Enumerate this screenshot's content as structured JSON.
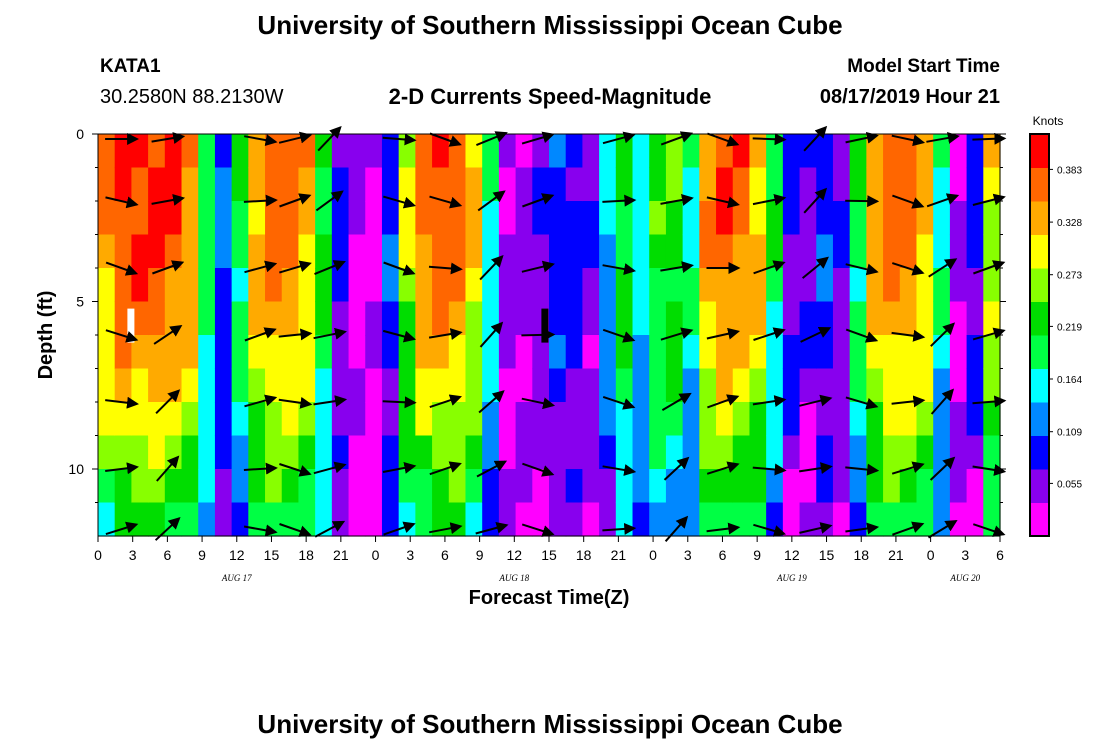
{
  "header": {
    "title": "University of Southern Mississippi Ocean Cube",
    "station": "KATA1",
    "coords": "30.2580N 88.2130W",
    "subtitle": "2-D Currents Speed-Magnitude",
    "model_start_label": "Model Start Time",
    "model_start_value": "08/17/2019 Hour 21"
  },
  "footer": {
    "title": "University of Southern Mississippi Ocean Cube"
  },
  "chart_data": {
    "type": "heatmap",
    "title": "2-D Currents Speed-Magnitude",
    "xlabel": "Forecast Time(Z)",
    "ylabel": "Depth (ft)",
    "x_range_hours": [
      0,
      78
    ],
    "y_range_ft": [
      0,
      12
    ],
    "x_tick_labels": [
      "0",
      "3",
      "6",
      "9",
      "12",
      "15",
      "18",
      "21",
      "0",
      "3",
      "6",
      "9",
      "12",
      "15",
      "18",
      "21",
      "0",
      "3",
      "6",
      "9",
      "12",
      "15",
      "18",
      "21",
      "0",
      "3",
      "6"
    ],
    "y_ticks": [
      0,
      5,
      10
    ],
    "y_tick_labels": [
      "0",
      "5",
      "10"
    ],
    "date_labels": [
      {
        "text": "AUG 17",
        "hour": 12
      },
      {
        "text": "AUG 18",
        "hour": 36
      },
      {
        "text": "AUG 19",
        "hour": 60
      },
      {
        "text": "AUG 20",
        "hour": 75
      }
    ],
    "colorbar": {
      "unit": "Knots",
      "min": 0.0,
      "max": 0.42,
      "ticks": [
        0.055,
        0.109,
        0.164,
        0.219,
        0.273,
        0.328,
        0.383
      ],
      "tick_labels": [
        "0.055",
        "0.109",
        "0.164",
        "0.219",
        "0.273",
        "0.328",
        "0.383"
      ],
      "colors": [
        "#ff00ff",
        "#8800ee",
        "#0000ff",
        "#0088ff",
        "#00ffff",
        "#00ff44",
        "#00dd00",
        "#88ff00",
        "#ffff00",
        "#ffaa00",
        "#ff6600",
        "#ff0000"
      ]
    },
    "speed_profile_by_column": [
      0.35,
      0.39,
      0.4,
      0.4,
      0.39,
      0.35,
      0.2,
      0.1,
      0.2,
      0.34,
      0.37,
      0.37,
      0.34,
      0.22,
      0.08,
      0.03,
      0.03,
      0.1,
      0.28,
      0.36,
      0.38,
      0.37,
      0.32,
      0.18,
      0.05,
      0.05,
      0.06,
      0.1,
      0.09,
      0.06,
      0.14,
      0.23,
      0.16,
      0.23,
      0.24,
      0.18,
      0.35,
      0.38,
      0.37,
      0.33,
      0.2,
      0.08,
      0.06,
      0.1,
      0.06,
      0.2,
      0.34,
      0.37,
      0.37,
      0.33,
      0.18,
      0.04,
      0.08,
      0.3
    ],
    "grid_rows": 12,
    "arrow_columns_hours": [
      2,
      6,
      14,
      17,
      20,
      26,
      30,
      34,
      38,
      45,
      50,
      54,
      58,
      62,
      66,
      70,
      73,
      77
    ],
    "arrow_rows_ft": [
      0.15,
      2,
      4,
      6,
      8,
      10,
      11.8
    ],
    "missing_value_markers": [
      {
        "hour": 2.8,
        "depth_ft": 5.6,
        "color": "#ffffff"
      },
      {
        "hour": 38.6,
        "depth_ft": 5.6,
        "color": "#000000"
      }
    ]
  }
}
